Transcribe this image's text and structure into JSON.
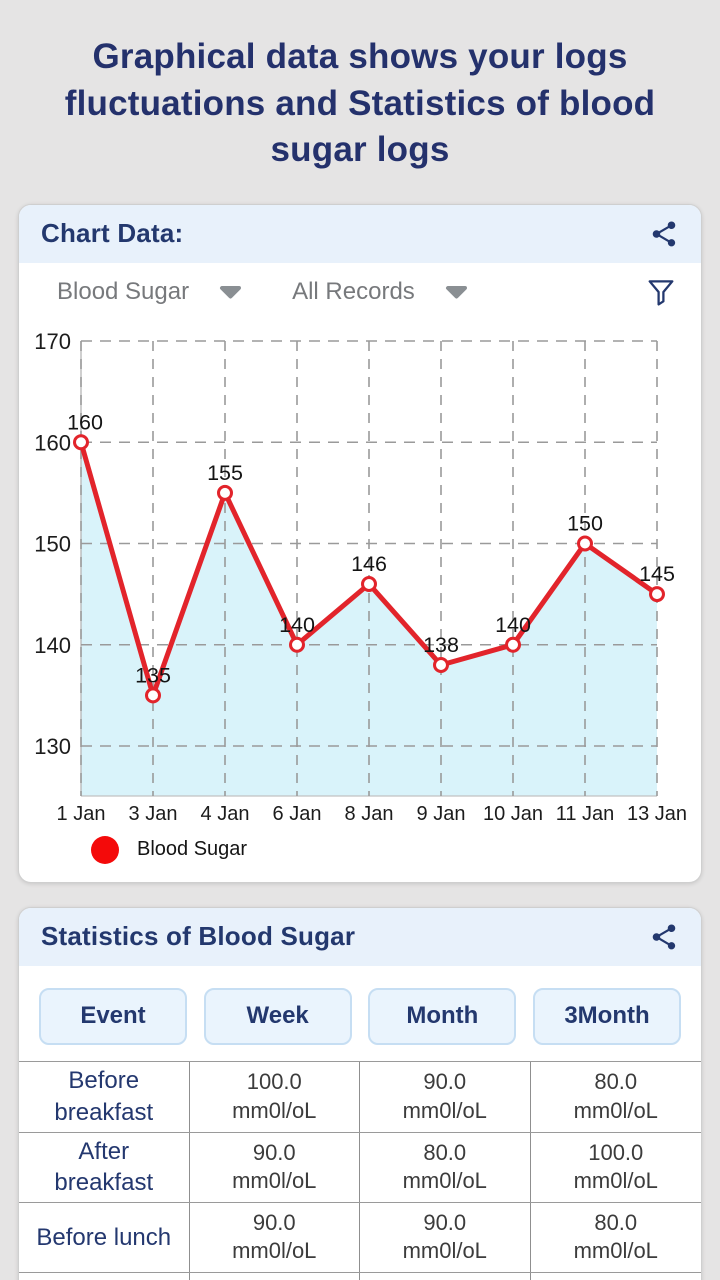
{
  "page": {
    "title": "Graphical data shows your logs fluctuations and Statistics of blood sugar logs"
  },
  "chart_card": {
    "header": "Chart Data:",
    "filters": {
      "metric": "Blood Sugar",
      "range": "All Records"
    },
    "legend_label": "Blood Sugar"
  },
  "chart_data": {
    "type": "line",
    "title": "",
    "x": [
      "1 Jan",
      "3 Jan",
      "4 Jan",
      "6 Jan",
      "8 Jan",
      "9 Jan",
      "10 Jan",
      "11 Jan",
      "13 Jan"
    ],
    "series": [
      {
        "name": "Blood Sugar",
        "values": [
          160,
          135,
          155,
          140,
          146,
          138,
          140,
          150,
          145
        ]
      }
    ],
    "yticks": [
      170,
      160,
      150,
      140,
      130
    ],
    "ylim": [
      125,
      170
    ],
    "grid": true,
    "legend_position": "bottom-left",
    "line_color": "#e2242b",
    "marker_fill": "#ffffff",
    "area_fill": "#d9f3fa",
    "grid_color": "#9a9a9a",
    "label_color": "#141414"
  },
  "stats_card": {
    "header": "Statistics of Blood Sugar",
    "tabs": [
      "Event",
      "Week",
      "Month",
      "3Month"
    ],
    "rows": [
      {
        "label": "Before breakfast",
        "values": [
          {
            "value": "100.0",
            "unit": "mm0l/oL"
          },
          {
            "value": "90.0",
            "unit": "mm0l/oL"
          },
          {
            "value": "80.0",
            "unit": "mm0l/oL"
          }
        ]
      },
      {
        "label": "After breakfast",
        "values": [
          {
            "value": "90.0",
            "unit": "mm0l/oL"
          },
          {
            "value": "80.0",
            "unit": "mm0l/oL"
          },
          {
            "value": "100.0",
            "unit": "mm0l/oL"
          }
        ]
      },
      {
        "label": "Before lunch",
        "values": [
          {
            "value": "90.0",
            "unit": "mm0l/oL"
          },
          {
            "value": "90.0",
            "unit": "mm0l/oL"
          },
          {
            "value": "80.0",
            "unit": "mm0l/oL"
          }
        ]
      }
    ],
    "partial_fourth_row": true
  },
  "colors": {
    "page_bg": "#e5e4e4",
    "navy": "#23386e",
    "title_navy": "#24316c",
    "header_bg": "#e8f1fb",
    "button_bg": "#eaf4fd",
    "button_border": "#c6def3",
    "chart_red": "#e2242b",
    "area_cyan": "#d9f3fa",
    "dropdown_gray": "#77797c",
    "value_gray": "#3c3c3c"
  },
  "icons": [
    "share-icon",
    "filter-icon",
    "chevron-down-icon",
    "legend-dot-icon"
  ]
}
